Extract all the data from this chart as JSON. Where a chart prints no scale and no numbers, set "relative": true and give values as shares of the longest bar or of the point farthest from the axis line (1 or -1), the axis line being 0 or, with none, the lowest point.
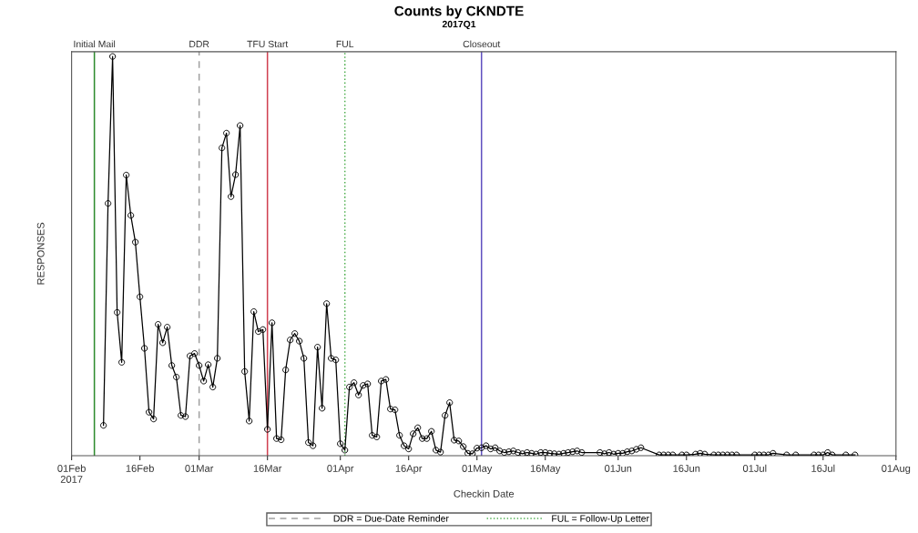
{
  "chart_data": {
    "type": "line",
    "title": "Counts by CKNDTE",
    "subtitle": "2017Q1",
    "xlabel": "Checkin Date",
    "ylabel": "RESPONSES",
    "relative": true,
    "marker": "circle",
    "line_style": "solid",
    "grid": false,
    "tick_labels": "x",
    "xlim": [
      "2017-02-01",
      "2017-08-01"
    ],
    "xticks": [
      {
        "value": "2017-02-01",
        "label": "01Feb\n2017"
      },
      {
        "value": "2017-02-16",
        "label": "16Feb"
      },
      {
        "value": "2017-03-01",
        "label": "01Mar"
      },
      {
        "value": "2017-03-16",
        "label": "16Mar"
      },
      {
        "value": "2017-04-01",
        "label": "01Apr"
      },
      {
        "value": "2017-04-16",
        "label": "16Apr"
      },
      {
        "value": "2017-05-01",
        "label": "01May"
      },
      {
        "value": "2017-05-16",
        "label": "16May"
      },
      {
        "value": "2017-06-01",
        "label": "01Jun"
      },
      {
        "value": "2017-06-16",
        "label": "16Jun"
      },
      {
        "value": "2017-07-01",
        "label": "01Jul"
      },
      {
        "value": "2017-07-16",
        "label": "16Jul"
      },
      {
        "value": "2017-08-01",
        "label": "01Aug"
      }
    ],
    "series": [
      {
        "color": "#000000",
        "x": [
          "2017-02-08",
          "2017-02-09",
          "2017-02-10",
          "2017-02-11",
          "2017-02-12",
          "2017-02-13",
          "2017-02-14",
          "2017-02-15",
          "2017-02-16",
          "2017-02-17",
          "2017-02-18",
          "2017-02-19",
          "2017-02-20",
          "2017-02-21",
          "2017-02-22",
          "2017-02-23",
          "2017-02-24",
          "2017-02-25",
          "2017-02-26",
          "2017-02-27",
          "2017-02-28",
          "2017-03-01",
          "2017-03-02",
          "2017-03-03",
          "2017-03-04",
          "2017-03-05",
          "2017-03-06",
          "2017-03-07",
          "2017-03-08",
          "2017-03-09",
          "2017-03-10",
          "2017-03-11",
          "2017-03-12",
          "2017-03-13",
          "2017-03-14",
          "2017-03-15",
          "2017-03-16",
          "2017-03-17",
          "2017-03-18",
          "2017-03-19",
          "2017-03-20",
          "2017-03-21",
          "2017-03-22",
          "2017-03-23",
          "2017-03-24",
          "2017-03-25",
          "2017-03-26",
          "2017-03-27",
          "2017-03-28",
          "2017-03-29",
          "2017-03-30",
          "2017-03-31",
          "2017-04-01",
          "2017-04-02",
          "2017-04-03",
          "2017-04-04",
          "2017-04-05",
          "2017-04-06",
          "2017-04-07",
          "2017-04-08",
          "2017-04-09",
          "2017-04-10",
          "2017-04-11",
          "2017-04-12",
          "2017-04-13",
          "2017-04-14",
          "2017-04-15",
          "2017-04-16",
          "2017-04-17",
          "2017-04-18",
          "2017-04-19",
          "2017-04-20",
          "2017-04-21",
          "2017-04-22",
          "2017-04-23",
          "2017-04-24",
          "2017-04-25",
          "2017-04-26",
          "2017-04-27",
          "2017-04-28",
          "2017-04-29",
          "2017-04-30",
          "2017-05-01",
          "2017-05-02",
          "2017-05-03",
          "2017-05-04",
          "2017-05-05",
          "2017-05-06",
          "2017-05-07",
          "2017-05-08",
          "2017-05-09",
          "2017-05-10",
          "2017-05-11",
          "2017-05-12",
          "2017-05-13",
          "2017-05-14",
          "2017-05-15",
          "2017-05-16",
          "2017-05-17",
          "2017-05-18",
          "2017-05-19",
          "2017-05-20",
          "2017-05-21",
          "2017-05-22",
          "2017-05-23",
          "2017-05-24",
          "2017-05-28",
          "2017-05-29",
          "2017-05-30",
          "2017-05-31",
          "2017-06-01",
          "2017-06-02",
          "2017-06-03",
          "2017-06-04",
          "2017-06-05",
          "2017-06-06",
          "2017-06-10",
          "2017-06-11",
          "2017-06-12",
          "2017-06-13",
          "2017-06-15",
          "2017-06-16",
          "2017-06-18",
          "2017-06-19",
          "2017-06-20",
          "2017-06-22",
          "2017-06-23",
          "2017-06-24",
          "2017-06-25",
          "2017-06-26",
          "2017-06-27",
          "2017-07-01",
          "2017-07-02",
          "2017-07-03",
          "2017-07-04",
          "2017-07-05",
          "2017-07-08",
          "2017-07-10",
          "2017-07-14",
          "2017-07-15",
          "2017-07-16",
          "2017-07-17",
          "2017-07-18",
          "2017-07-21",
          "2017-07-23"
        ],
        "values": [
          0.076,
          0.632,
          1.0,
          0.359,
          0.234,
          0.703,
          0.602,
          0.535,
          0.398,
          0.269,
          0.109,
          0.092,
          0.329,
          0.283,
          0.322,
          0.226,
          0.197,
          0.101,
          0.098,
          0.25,
          0.256,
          0.226,
          0.187,
          0.228,
          0.172,
          0.244,
          0.771,
          0.808,
          0.649,
          0.704,
          0.827,
          0.211,
          0.087,
          0.361,
          0.311,
          0.316,
          0.066,
          0.333,
          0.043,
          0.04,
          0.215,
          0.29,
          0.306,
          0.287,
          0.244,
          0.033,
          0.025,
          0.272,
          0.119,
          0.381,
          0.244,
          0.24,
          0.03,
          0.014,
          0.172,
          0.183,
          0.152,
          0.176,
          0.18,
          0.051,
          0.047,
          0.187,
          0.191,
          0.117,
          0.115,
          0.051,
          0.025,
          0.017,
          0.055,
          0.07,
          0.043,
          0.043,
          0.061,
          0.014,
          0.009,
          0.101,
          0.133,
          0.039,
          0.037,
          0.023,
          0.006,
          0.005,
          0.019,
          0.02,
          0.025,
          0.017,
          0.02,
          0.012,
          0.008,
          0.01,
          0.012,
          0.008,
          0.005,
          0.008,
          0.006,
          0.004,
          0.008,
          0.008,
          0.006,
          0.005,
          0.004,
          0.006,
          0.008,
          0.01,
          0.012,
          0.008,
          0.008,
          0.005,
          0.008,
          0.004,
          0.006,
          0.006,
          0.01,
          0.012,
          0.016,
          0.02,
          0.002,
          0.002,
          0.002,
          0.002,
          0.002,
          0.002,
          0.004,
          0.006,
          0.004,
          0.002,
          0.002,
          0.002,
          0.002,
          0.002,
          0.002,
          0.002,
          0.002,
          0.002,
          0.002,
          0.006,
          0.002,
          0.002,
          0.002,
          0.002,
          0.002,
          0.008,
          0.002,
          0.002,
          0.002
        ]
      }
    ],
    "ref_lines": [
      {
        "axis": "x",
        "value": "2017-02-06",
        "label": "Initial Mail",
        "color": "#2e8b2e",
        "line_style": "solid"
      },
      {
        "axis": "x",
        "value": "2017-03-01",
        "label": "DDR",
        "color": "#a0a0a0",
        "line_style": "dashed"
      },
      {
        "axis": "x",
        "value": "2017-03-16",
        "label": "TFU Start",
        "color": "#d04050",
        "line_style": "solid"
      },
      {
        "axis": "x",
        "value": "2017-04-02",
        "label": "FUL",
        "color": "#50b050",
        "line_style": "dotted"
      },
      {
        "axis": "x",
        "value": "2017-05-02",
        "label": "Closeout",
        "color": "#6050c0",
        "line_style": "solid"
      }
    ],
    "annotations": [
      "DDR = Due-Date Reminder",
      "FUL = Follow-Up Letter"
    ]
  }
}
